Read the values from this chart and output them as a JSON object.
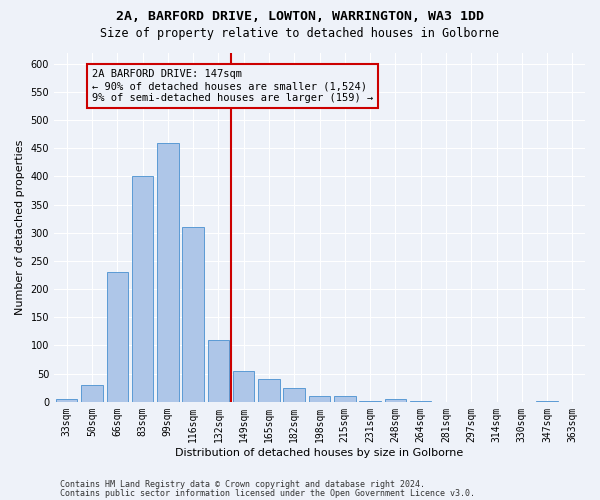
{
  "title_line1": "2A, BARFORD DRIVE, LOWTON, WARRINGTON, WA3 1DD",
  "title_line2": "Size of property relative to detached houses in Golborne",
  "xlabel": "Distribution of detached houses by size in Golborne",
  "ylabel": "Number of detached properties",
  "categories": [
    "33sqm",
    "50sqm",
    "66sqm",
    "83sqm",
    "99sqm",
    "116sqm",
    "132sqm",
    "149sqm",
    "165sqm",
    "182sqm",
    "198sqm",
    "215sqm",
    "231sqm",
    "248sqm",
    "264sqm",
    "281sqm",
    "297sqm",
    "314sqm",
    "330sqm",
    "347sqm",
    "363sqm"
  ],
  "values": [
    5,
    30,
    230,
    400,
    460,
    310,
    110,
    55,
    40,
    25,
    10,
    10,
    2,
    5,
    1,
    0,
    0,
    0,
    0,
    2,
    0
  ],
  "bar_color": "#aec6e8",
  "bar_edge_color": "#5b9bd5",
  "vline_x_index": 7,
  "vline_color": "#cc0000",
  "annotation_line1": "2A BARFORD DRIVE: 147sqm",
  "annotation_line2": "← 90% of detached houses are smaller (1,524)",
  "annotation_line3": "9% of semi-detached houses are larger (159) →",
  "annotation_box_color": "#cc0000",
  "ylim": [
    0,
    620
  ],
  "yticks": [
    0,
    50,
    100,
    150,
    200,
    250,
    300,
    350,
    400,
    450,
    500,
    550,
    600
  ],
  "footnote1": "Contains HM Land Registry data © Crown copyright and database right 2024.",
  "footnote2": "Contains public sector information licensed under the Open Government Licence v3.0.",
  "bg_color": "#eef2f9",
  "grid_color": "#ffffff",
  "title_fontsize": 9.5,
  "subtitle_fontsize": 8.5,
  "axis_label_fontsize": 8,
  "tick_fontsize": 7,
  "annotation_fontsize": 7.5,
  "footnote_fontsize": 6
}
